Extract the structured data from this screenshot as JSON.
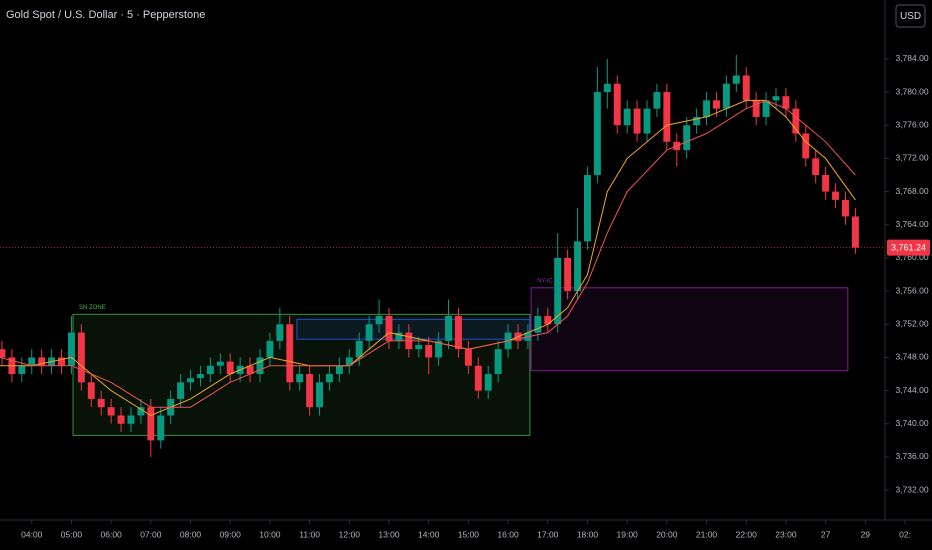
{
  "chart_data": {
    "type": "candlestick",
    "title": "Gold Spot / U.S. Dollar · 5 · Pepperstone",
    "currency": "USD",
    "up_color": "#089981",
    "down_color": "#f23645",
    "xlim": [
      3.2,
      26.68
    ],
    "ylim": [
      3728.4,
      3791.1
    ],
    "xticks": [
      {
        "value": 4,
        "label": "04:00"
      },
      {
        "value": 5,
        "label": "05:00"
      },
      {
        "value": 6,
        "label": "06:00"
      },
      {
        "value": 7,
        "label": "07:00"
      },
      {
        "value": 8,
        "label": "08:00"
      },
      {
        "value": 9,
        "label": "09:00"
      },
      {
        "value": 10,
        "label": "10:00"
      },
      {
        "value": 11,
        "label": "11:00"
      },
      {
        "value": 12,
        "label": "12:00"
      },
      {
        "value": 13,
        "label": "13:00"
      },
      {
        "value": 14,
        "label": "14:00"
      },
      {
        "value": 15,
        "label": "15:00"
      },
      {
        "value": 16,
        "label": "16:00"
      },
      {
        "value": 17,
        "label": "17:00"
      },
      {
        "value": 18,
        "label": "18:00"
      },
      {
        "value": 19,
        "label": "19:00"
      },
      {
        "value": 20,
        "label": "20:00"
      },
      {
        "value": 21,
        "label": "21:00"
      },
      {
        "value": 22,
        "label": "22:00"
      },
      {
        "value": 23,
        "label": "23:00"
      },
      {
        "value": 24,
        "label": "27"
      },
      {
        "value": 25,
        "label": "29"
      },
      {
        "value": 26,
        "label": "02:"
      }
    ],
    "yticks": [
      {
        "value": 3784,
        "label": "3,784.00"
      },
      {
        "value": 3780,
        "label": "3,780.00"
      },
      {
        "value": 3776,
        "label": "3,776.00"
      },
      {
        "value": 3772,
        "label": "3,772.00"
      },
      {
        "value": 3768,
        "label": "3,768.00"
      },
      {
        "value": 3764,
        "label": "3,764.00"
      },
      {
        "value": 3760,
        "label": "3,760.00"
      },
      {
        "value": 3756,
        "label": "3,756.00"
      },
      {
        "value": 3752,
        "label": "3,752.00"
      },
      {
        "value": 3748,
        "label": "3,748.00"
      },
      {
        "value": 3744,
        "label": "3,744.00"
      },
      {
        "value": 3740,
        "label": "3,740.00"
      },
      {
        "value": 3736,
        "label": "3,736.00"
      },
      {
        "value": 3732,
        "label": "3,732.00"
      }
    ],
    "last_price": {
      "value": 3761.24,
      "label": "3,761.24",
      "color": "#f23645"
    },
    "candles": {
      "x": [
        3.25,
        3.5,
        3.75,
        4,
        4.25,
        4.5,
        4.75,
        5,
        5.25,
        5.5,
        5.75,
        6,
        6.25,
        6.5,
        6.75,
        7,
        7.25,
        7.5,
        7.75,
        8,
        8.25,
        8.5,
        8.75,
        9,
        9.25,
        9.5,
        9.75,
        10,
        10.25,
        10.5,
        10.75,
        11,
        11.25,
        11.5,
        11.75,
        12,
        12.25,
        12.5,
        12.75,
        13,
        13.25,
        13.5,
        13.75,
        14,
        14.25,
        14.5,
        14.75,
        15,
        15.25,
        15.5,
        15.75,
        16,
        16.25,
        16.5,
        16.75,
        17,
        17.25,
        17.5,
        17.75,
        18,
        18.25,
        18.5,
        18.75,
        19,
        19.25,
        19.5,
        19.75,
        20,
        20.25,
        20.5,
        20.75,
        21,
        21.25,
        21.5,
        21.75,
        22,
        22.25,
        22.5,
        22.75,
        23,
        23.25,
        23.5,
        23.75,
        24,
        24.25,
        24.5,
        24.75
      ],
      "open": [
        3749,
        3748,
        3746,
        3747,
        3748,
        3747,
        3748,
        3747,
        3751,
        3745,
        3743,
        3742,
        3741,
        3740,
        3741,
        3742,
        3738,
        3741,
        3743,
        3745,
        3745.5,
        3746,
        3747,
        3747.5,
        3746,
        3747,
        3746,
        3748,
        3750,
        3752,
        3745,
        3746,
        3742,
        3745,
        3746,
        3747,
        3748,
        3750,
        3752,
        3753,
        3750,
        3751,
        3749,
        3749.5,
        3748,
        3750,
        3753,
        3749,
        3747,
        3744,
        3746,
        3749,
        3751,
        3750,
        3751,
        3753,
        3752,
        3760,
        3756,
        3762,
        3770,
        3780,
        3781,
        3776,
        3778,
        3775,
        3778,
        3780,
        3774,
        3773,
        3776,
        3777,
        3779,
        3778,
        3781,
        3782,
        3779,
        3777,
        3779,
        3779.5,
        3778,
        3775,
        3772,
        3770,
        3768,
        3767,
        3765
      ],
      "high": [
        3750,
        3749,
        3748,
        3749,
        3749,
        3749,
        3749,
        3753,
        3752,
        3746,
        3744,
        3743,
        3742,
        3742,
        3743,
        3743,
        3742,
        3744,
        3746,
        3746.5,
        3747,
        3748,
        3748.5,
        3748.5,
        3748,
        3748,
        3749,
        3751,
        3754,
        3753,
        3747,
        3747,
        3746,
        3747,
        3748,
        3749,
        3751,
        3753,
        3755,
        3754,
        3752,
        3752,
        3750.5,
        3750.5,
        3751,
        3755,
        3754,
        3750,
        3748,
        3747,
        3750,
        3752,
        3752,
        3752,
        3754,
        3754,
        3763,
        3761,
        3766,
        3771,
        3783,
        3784,
        3782,
        3779,
        3779,
        3779,
        3781,
        3781,
        3775,
        3777,
        3778,
        3780,
        3780,
        3782,
        3784.5,
        3783,
        3780,
        3780,
        3780.5,
        3780.5,
        3779,
        3776,
        3773,
        3771,
        3769,
        3768,
        3766
      ],
      "low": [
        3747,
        3745,
        3745,
        3746,
        3746,
        3746,
        3746,
        3746,
        3744,
        3742,
        3741,
        3740,
        3739,
        3739,
        3740,
        3736,
        3737,
        3740,
        3742,
        3744,
        3744.5,
        3745,
        3746,
        3745,
        3745,
        3745,
        3745,
        3747,
        3749,
        3744,
        3744,
        3741,
        3741,
        3744,
        3745,
        3746,
        3747,
        3749,
        3751,
        3749,
        3749,
        3748,
        3748,
        3746,
        3747,
        3749,
        3748,
        3746,
        3743,
        3743,
        3745,
        3748,
        3749,
        3749,
        3750,
        3751,
        3751,
        3755,
        3755,
        3761,
        3769,
        3778,
        3775,
        3775,
        3774,
        3774,
        3777,
        3773,
        3771,
        3772,
        3775,
        3776,
        3777,
        3777,
        3780,
        3778,
        3776,
        3776,
        3778,
        3777,
        3774,
        3771,
        3769,
        3767,
        3766,
        3764,
        3760.5
      ],
      "close": [
        3748,
        3746,
        3747,
        3748,
        3747,
        3748,
        3747,
        3751,
        3745,
        3743,
        3742,
        3741,
        3740,
        3741,
        3742,
        3738,
        3741,
        3743,
        3745,
        3745.5,
        3746,
        3747,
        3747.5,
        3746,
        3747,
        3746,
        3748,
        3750,
        3752,
        3745,
        3746,
        3742,
        3745,
        3746,
        3747,
        3748,
        3750,
        3752,
        3753,
        3750,
        3751,
        3749,
        3749.5,
        3748,
        3750,
        3753,
        3749,
        3747,
        3744,
        3746,
        3749,
        3751,
        3750,
        3751,
        3753,
        3752,
        3760,
        3756,
        3762,
        3770,
        3780,
        3781,
        3776,
        3778,
        3775,
        3778,
        3780,
        3774,
        3773,
        3776,
        3777,
        3779,
        3778,
        3781,
        3782,
        3779,
        3777,
        3779,
        3779.5,
        3778,
        3775,
        3772,
        3770,
        3768,
        3767,
        3765,
        3761.24
      ]
    },
    "series": [
      {
        "color": "#f5a623",
        "x": [
          3.2,
          4,
          5,
          6,
          7,
          8,
          9,
          10,
          11,
          12,
          13,
          14,
          15,
          16,
          17,
          17.5,
          18,
          18.5,
          19,
          20,
          21,
          22,
          22.5,
          23,
          23.5,
          24,
          24.75
        ],
        "values": [
          3747,
          3747,
          3748,
          3744,
          3741,
          3743,
          3746,
          3748,
          3747,
          3747,
          3751,
          3750,
          3749,
          3750,
          3752,
          3754,
          3758,
          3768,
          3772,
          3776,
          3777,
          3779,
          3779,
          3777,
          3774,
          3772,
          3767
        ]
      },
      {
        "color": "#ef5350",
        "x": [
          3.2,
          4,
          5,
          6,
          7,
          8,
          9,
          10,
          11,
          12,
          13,
          14,
          15,
          16,
          17,
          17.5,
          18,
          18.5,
          19,
          20,
          21,
          22,
          22.5,
          23,
          23.5,
          24,
          24.75
        ],
        "values": [
          3748,
          3747,
          3747,
          3745,
          3742,
          3742,
          3745,
          3747,
          3747,
          3747,
          3750,
          3750,
          3749,
          3750,
          3751,
          3753,
          3757,
          3763,
          3768,
          3773,
          3775,
          3778,
          3779,
          3778,
          3776,
          3774,
          3770
        ]
      }
    ],
    "zones": [
      {
        "label": "SN ZONE",
        "color": "#4caf50",
        "x": [
          5.04,
          16.55
        ],
        "y": [
          3738.6,
          3753.2
        ]
      },
      {
        "color": "#2962ff",
        "x": [
          10.68,
          16.55
        ],
        "y": [
          3750.2,
          3752.6
        ]
      },
      {
        "label": "NY-IC",
        "color": "#9c27b0",
        "x": [
          16.58,
          24.56
        ],
        "y": [
          3746.4,
          3756.4
        ]
      }
    ]
  }
}
